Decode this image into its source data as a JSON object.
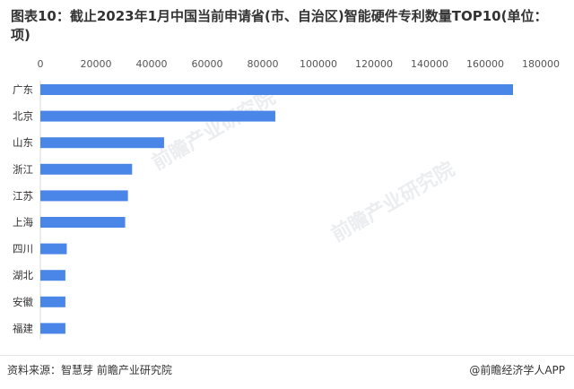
{
  "title": "图表10：截止2023年1月中国当前申请省(市、自治区)智能硬件专利数量TOP10(单位：项)",
  "source": "资料来源：智慧芽 前瞻产业研究院",
  "credit": "@前瞻经济学人APP",
  "watermark": "前瞻产业研究院",
  "colors": {
    "bar": "#4a86e8",
    "axis": "#d9d9d9"
  },
  "chart_data": {
    "type": "bar",
    "orientation": "horizontal",
    "categories": [
      "广东",
      "北京",
      "山东",
      "浙江",
      "江苏",
      "上海",
      "四川",
      "湖北",
      "安徽",
      "福建"
    ],
    "values": [
      170000,
      84500,
      44500,
      33000,
      31500,
      30500,
      9500,
      9000,
      9000,
      9000
    ],
    "xlim": [
      0,
      180000
    ],
    "xticks": [
      0,
      20000,
      40000,
      60000,
      80000,
      100000,
      120000,
      140000,
      160000,
      180000
    ],
    "x_axis_position": "top",
    "grid": false,
    "legend": "none"
  }
}
